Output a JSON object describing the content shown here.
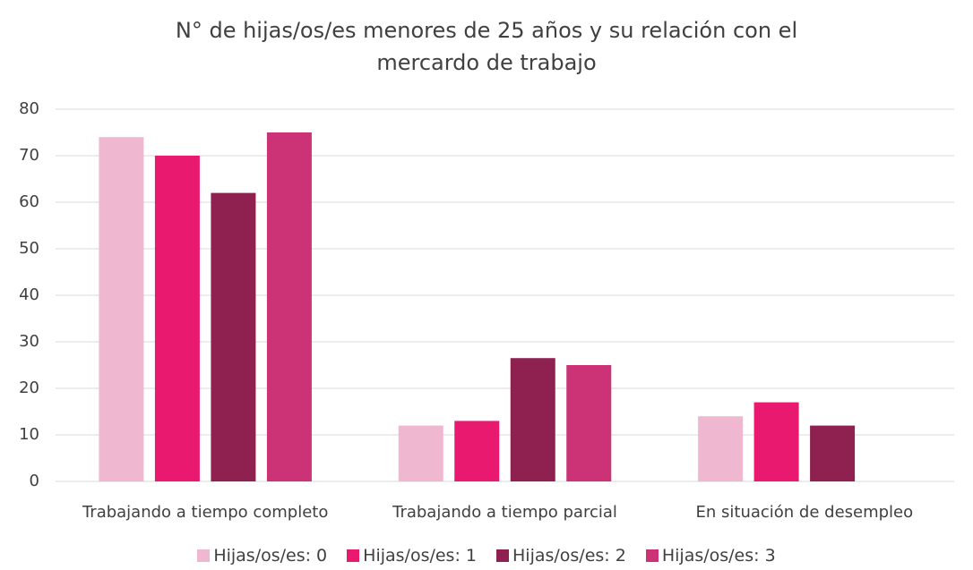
{
  "chart_data": {
    "type": "bar",
    "title": "N° de hijas/os/es menores de 25 años y su relación con el mercardo de trabajo",
    "categories": [
      "Trabajando a tiempo completo",
      "Trabajando a tiempo parcial",
      "En situación de desempleo"
    ],
    "series": [
      {
        "name": "Hijas/os/es: 0",
        "color": "#f0b8d0",
        "values": [
          74,
          12,
          14
        ]
      },
      {
        "name": "Hijas/os/es: 1",
        "color": "#e8196e",
        "values": [
          70,
          13,
          17
        ]
      },
      {
        "name": "Hijas/os/es: 2",
        "color": "#8e2150",
        "values": [
          62,
          26.5,
          12
        ]
      },
      {
        "name": "Hijas/os/es: 3",
        "color": "#cc3377",
        "values": [
          75,
          25,
          null
        ]
      }
    ],
    "ylim": [
      0,
      80
    ],
    "yticks": [
      0,
      10,
      20,
      30,
      40,
      50,
      60,
      70,
      80
    ],
    "grid": true,
    "legend": "bottom"
  }
}
